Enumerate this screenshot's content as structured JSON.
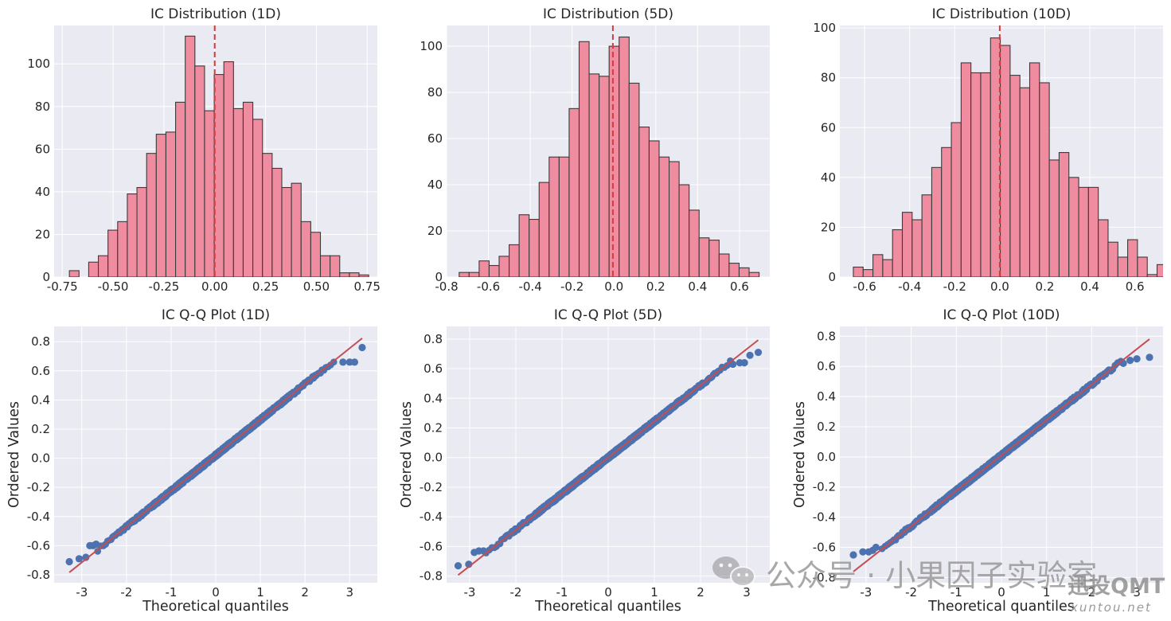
{
  "chart_data": [
    {
      "type": "bar",
      "title": "IC Distribution (1D)",
      "xlim": [
        -0.79,
        0.8
      ],
      "ylim": [
        0,
        118
      ],
      "xticks": [
        -0.75,
        -0.5,
        -0.25,
        0.0,
        0.25,
        0.5,
        0.75
      ],
      "xtick_labels": [
        "-0.75",
        "-0.50",
        "-0.25",
        "0.00",
        "0.25",
        "0.50",
        "0.75"
      ],
      "yticks": [
        0,
        20,
        40,
        60,
        80,
        100
      ],
      "bins_start": -0.715,
      "bin_width": 0.0475,
      "counts": [
        3,
        0,
        7,
        10,
        22,
        26,
        39,
        42,
        58,
        67,
        68,
        82,
        113,
        99,
        78,
        95,
        101,
        79,
        82,
        74,
        58,
        51,
        42,
        44,
        26,
        21,
        10,
        10,
        2,
        2,
        1
      ],
      "mean_line": 0.0,
      "grid": true
    },
    {
      "type": "bar",
      "title": "IC Distribution (5D)",
      "xlim": [
        -0.8,
        0.745
      ],
      "ylim": [
        0,
        109
      ],
      "xticks": [
        -0.8,
        -0.6,
        -0.4,
        -0.2,
        0.0,
        0.2,
        0.4,
        0.6
      ],
      "xtick_labels": [
        "-0.8",
        "-0.6",
        "-0.4",
        "-0.2",
        "0.0",
        "0.2",
        "0.4",
        "0.6"
      ],
      "yticks": [
        0,
        20,
        40,
        60,
        80,
        100
      ],
      "bins_start": -0.74,
      "bin_width": 0.0478,
      "counts": [
        2,
        2,
        7,
        5,
        9,
        14,
        27,
        25,
        41,
        52,
        52,
        73,
        102,
        88,
        87,
        100,
        104,
        84,
        65,
        59,
        52,
        50,
        40,
        29,
        17,
        16,
        10,
        6,
        4,
        2
      ],
      "mean_line": -0.005,
      "grid": true
    },
    {
      "type": "bar",
      "title": "IC Distribution (10D)",
      "xlim": [
        -0.71,
        0.725
      ],
      "ylim": [
        0,
        101
      ],
      "xticks": [
        -0.6,
        -0.4,
        -0.2,
        0.0,
        0.2,
        0.4,
        0.6
      ],
      "xtick_labels": [
        "-0.6",
        "-0.4",
        "-0.2",
        "0.0",
        "0.2",
        "0.4",
        "0.6"
      ],
      "yticks": [
        0,
        20,
        40,
        60,
        80,
        100
      ],
      "bins_start": -0.65,
      "bin_width": 0.0435,
      "counts": [
        4,
        3,
        9,
        7,
        19,
        26,
        23,
        33,
        44,
        52,
        62,
        86,
        82,
        82,
        96,
        93,
        81,
        76,
        86,
        78,
        47,
        50,
        40,
        36,
        36,
        23,
        14,
        8,
        15,
        8,
        1,
        5
      ],
      "mean_line": 0.0,
      "grid": true
    },
    {
      "type": "scatter",
      "title": "IC Q-Q Plot (1D)",
      "xlabel": "Theoretical quantiles",
      "ylabel": "Ordered Values",
      "xlim": [
        -3.62,
        3.62
      ],
      "ylim": [
        -0.855,
        0.905
      ],
      "xticks": [
        -3,
        -2,
        -1,
        0,
        1,
        2,
        3
      ],
      "yticks": [
        -0.8,
        -0.6,
        -0.4,
        -0.2,
        0.0,
        0.2,
        0.4,
        0.6,
        0.8
      ],
      "fit_line": {
        "slope": 0.245,
        "intercept": 0.02,
        "x_range": [
          -3.28,
          3.28
        ]
      },
      "n": 1100,
      "outliers": [
        [
          -3.28,
          -0.71
        ],
        [
          -3.06,
          -0.69
        ],
        [
          -2.91,
          -0.68
        ],
        [
          -2.82,
          -0.6
        ],
        [
          -2.75,
          -0.6
        ],
        [
          -2.68,
          -0.59
        ],
        [
          2.85,
          0.66
        ],
        [
          3.0,
          0.66
        ],
        [
          3.11,
          0.66
        ],
        [
          3.28,
          0.76
        ]
      ],
      "grid": true
    },
    {
      "type": "scatter",
      "title": "IC Q-Q Plot (5D)",
      "xlabel": "Theoretical quantiles",
      "ylabel": "Ordered Values",
      "xlim": [
        -3.5,
        3.5
      ],
      "ylim": [
        -0.845,
        0.885
      ],
      "xticks": [
        -3,
        -2,
        -1,
        0,
        1,
        2,
        3
      ],
      "yticks": [
        -0.8,
        -0.6,
        -0.4,
        -0.2,
        0.0,
        0.2,
        0.4,
        0.6,
        0.8
      ],
      "fit_line": {
        "slope": 0.244,
        "intercept": 0.0,
        "x_range": [
          -3.25,
          3.25
        ]
      },
      "n": 1100,
      "outliers": [
        [
          -3.25,
          -0.73
        ],
        [
          -3.02,
          -0.72
        ],
        [
          -2.9,
          -0.64
        ],
        [
          -2.8,
          -0.63
        ],
        [
          -2.7,
          -0.63
        ],
        [
          2.7,
          0.63
        ],
        [
          2.85,
          0.64
        ],
        [
          2.95,
          0.64
        ],
        [
          3.07,
          0.69
        ],
        [
          3.25,
          0.71
        ]
      ],
      "grid": true
    },
    {
      "type": "scatter",
      "title": "IC Q-Q Plot (10D)",
      "xlabel": "Theoretical quantiles",
      "ylabel": "Ordered Values",
      "xlim": [
        -3.58,
        3.58
      ],
      "ylim": [
        -0.835,
        0.865
      ],
      "xticks": [
        -3,
        -2,
        -1,
        0,
        1,
        2,
        3
      ],
      "yticks": [
        -0.8,
        -0.6,
        -0.4,
        -0.2,
        0.0,
        0.2,
        0.4,
        0.6,
        0.8
      ],
      "fit_line": {
        "slope": 0.235,
        "intercept": 0.01,
        "x_range": [
          -3.28,
          3.28
        ]
      },
      "n": 1100,
      "outliers": [
        [
          -3.28,
          -0.65
        ],
        [
          -3.07,
          -0.63
        ],
        [
          -2.94,
          -0.63
        ],
        [
          -2.85,
          -0.62
        ],
        [
          -2.78,
          -0.6
        ],
        [
          2.7,
          0.62
        ],
        [
          2.85,
          0.64
        ],
        [
          3.0,
          0.65
        ],
        [
          3.28,
          0.66
        ]
      ],
      "grid": true
    }
  ],
  "colors": {
    "axes_bg": "#eaeaf2",
    "grid": "#ffffff",
    "bar_fill": "#f08ca0",
    "bar_edge": "#3b3b3b",
    "mean_line": "#d63a3a",
    "qq_points": "#4c72b0",
    "qq_line": "#c44e52"
  },
  "watermark": {
    "text": "公众号 · 小果因子实验室",
    "logo": "迅投QMT",
    "url": "xuntou.net",
    "icon": "wechat-icon"
  }
}
